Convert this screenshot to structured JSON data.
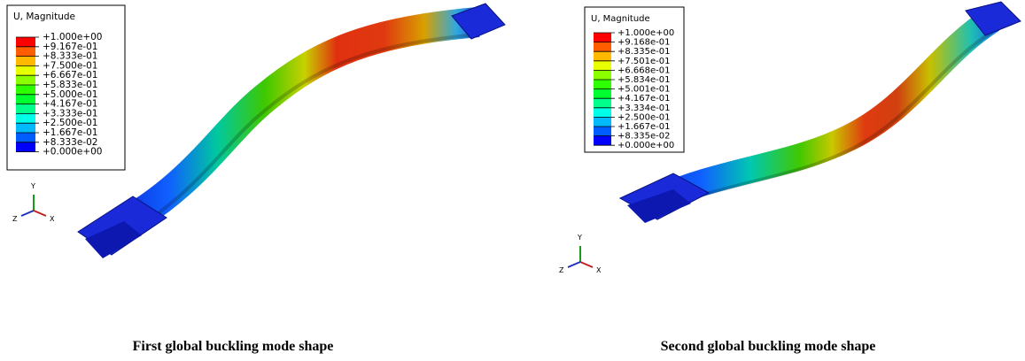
{
  "panels": [
    {
      "legend": {
        "title": "U, Magnitude",
        "labels": [
          "+1.000e+00",
          "+9.167e-01",
          "+8.333e-01",
          "+7.500e-01",
          "+6.667e-01",
          "+5.833e-01",
          "+5.000e-01",
          "+4.167e-01",
          "+3.333e-01",
          "+2.500e-01",
          "+1.667e-01",
          "+8.333e-02",
          "+0.000e+00"
        ]
      },
      "triad": {
        "y": "Y",
        "z": "Z",
        "x": "X"
      },
      "caption": "First global buckling mode shape"
    },
    {
      "legend": {
        "title": "U, Magnitude",
        "labels": [
          "+1.000e+00",
          "+9.168e-01",
          "+8.335e-01",
          "+7.501e-01",
          "+6.668e-01",
          "+5.834e-01",
          "+5.001e-01",
          "+4.167e-01",
          "+3.334e-01",
          "+2.500e-01",
          "+1.667e-01",
          "+8.335e-02",
          "+0.000e+00"
        ]
      },
      "triad": {
        "y": "Y",
        "z": "Z",
        "x": "X"
      },
      "caption": "Second global buckling mode shape"
    }
  ]
}
